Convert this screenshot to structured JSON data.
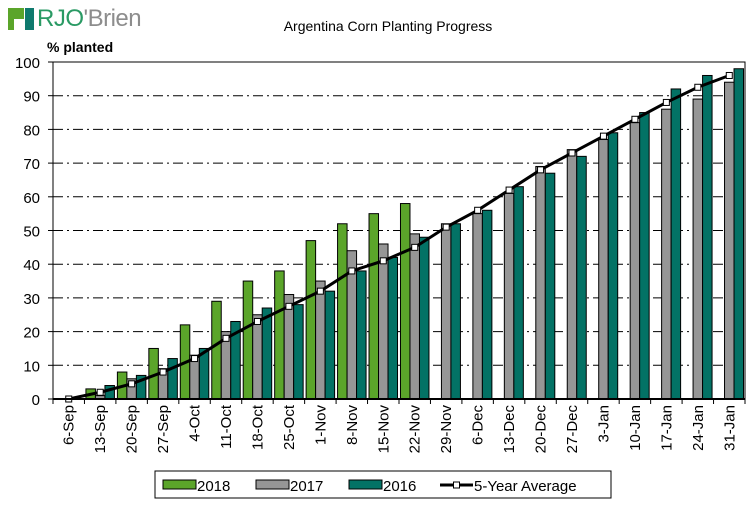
{
  "logo": {
    "part1": "RJO",
    "part2": "'Brien"
  },
  "chart_data": {
    "type": "bar",
    "title": "Argentina Corn Planting Progress",
    "ylabel": "% planted",
    "xlabel": "",
    "ylim": [
      0,
      100
    ],
    "yticks": [
      0,
      10,
      20,
      30,
      40,
      50,
      60,
      70,
      80,
      90,
      100
    ],
    "grid": true,
    "legend_position": "bottom",
    "categories": [
      "6-Sep",
      "13-Sep",
      "20-Sep",
      "27-Sep",
      "4-Oct",
      "11-Oct",
      "18-Oct",
      "25-Oct",
      "1-Nov",
      "8-Nov",
      "15-Nov",
      "22-Nov",
      "29-Nov",
      "6-Dec",
      "13-Dec",
      "20-Dec",
      "27-Dec",
      "3-Jan",
      "10-Jan",
      "17-Jan",
      "24-Jan",
      "31-Jan"
    ],
    "series": [
      {
        "name": "2018",
        "type": "bar",
        "color": "#5ba52a",
        "values": [
          0,
          3,
          8,
          15,
          22,
          29,
          35,
          38,
          47,
          52,
          55,
          58,
          null,
          null,
          null,
          null,
          null,
          null,
          null,
          null,
          null,
          null
        ]
      },
      {
        "name": "2017",
        "type": "bar",
        "color": "#969696",
        "values": [
          0,
          1,
          6,
          9,
          13,
          20,
          25,
          31,
          35,
          44,
          46,
          49,
          52,
          55,
          61,
          69,
          74,
          77,
          82,
          86,
          89,
          94
        ]
      },
      {
        "name": "2016",
        "type": "bar",
        "color": "#037265",
        "values": [
          0,
          4,
          7,
          12,
          15,
          23,
          27,
          28,
          32,
          38,
          42,
          48,
          52,
          56,
          63,
          67,
          72,
          79,
          85,
          92,
          96,
          98
        ]
      },
      {
        "name": "5-Year Average",
        "type": "line",
        "color": "#000000",
        "values": [
          0,
          2,
          4.5,
          8,
          12,
          18,
          23,
          27.5,
          32,
          38,
          41,
          45,
          51,
          56,
          62,
          68,
          73,
          78,
          83,
          88,
          92.5,
          96
        ]
      }
    ]
  }
}
